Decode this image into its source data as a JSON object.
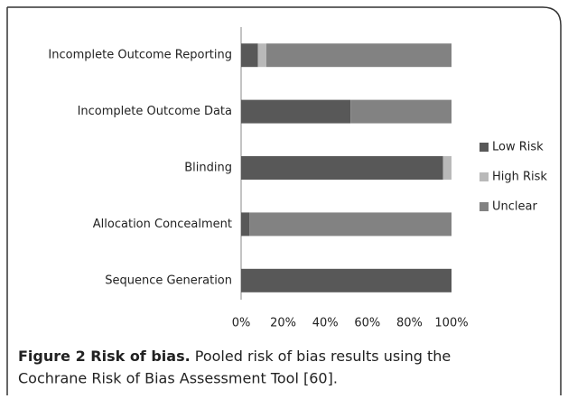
{
  "chart_data": {
    "type": "stacked-bar-horizontal",
    "categories": [
      "Incomplete Outcome Reporting",
      "Incomplete Outcome Data",
      "Blinding",
      "Allocation Concealment",
      "Sequence Generation"
    ],
    "series": [
      {
        "name": "Low Risk",
        "color": "#585858",
        "values": [
          8,
          52,
          96,
          4,
          100
        ]
      },
      {
        "name": "High Risk",
        "color": "#b9b9b9",
        "values": [
          4,
          0,
          4,
          0,
          0
        ]
      },
      {
        "name": "Unclear",
        "color": "#828282",
        "values": [
          88,
          48,
          0,
          96,
          0
        ]
      }
    ],
    "xlim": [
      0,
      100
    ],
    "xticks": [
      {
        "value": 0,
        "label": "0%"
      },
      {
        "value": 20,
        "label": "20%"
      },
      {
        "value": 40,
        "label": "40%"
      },
      {
        "value": 60,
        "label": "60%"
      },
      {
        "value": 80,
        "label": "80%"
      },
      {
        "value": 100,
        "label": "100%"
      }
    ],
    "legend": "right",
    "caption": {
      "label": "Figure 2 Risk of bias.",
      "text_line1": "Pooled risk of bias results using the",
      "text_line2": "Cochrane Risk of Bias Assessment Tool [60]."
    }
  }
}
